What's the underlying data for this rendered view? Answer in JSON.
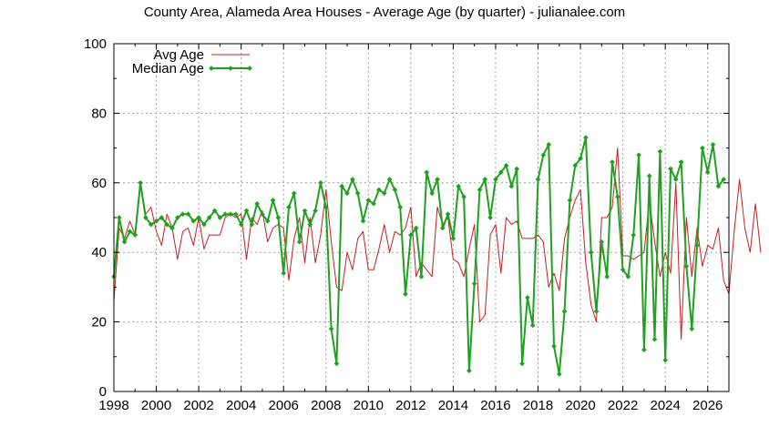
{
  "chart_data": {
    "type": "line",
    "title": "County Area, Alameda Area Houses - Average Age (by quarter) - julianalee.com",
    "xlabel": "",
    "ylabel": "",
    "xlim": [
      1998,
      2027
    ],
    "ylim": [
      0,
      100
    ],
    "x_ticks": [
      1998,
      2000,
      2002,
      2004,
      2006,
      2008,
      2010,
      2012,
      2014,
      2016,
      2018,
      2020,
      2022,
      2024,
      2026
    ],
    "y_ticks": [
      0,
      20,
      40,
      60,
      80,
      100
    ],
    "grid": true,
    "legend_position": "top-left",
    "x_start": 1998.0,
    "x_step": 0.25,
    "series": [
      {
        "name": "Avg Age",
        "color": "#c02020",
        "markers": false,
        "values": [
          26,
          47,
          44,
          49,
          45,
          59,
          51,
          53,
          46,
          42,
          51,
          47,
          38,
          46,
          47,
          42,
          50,
          41,
          45,
          45,
          45,
          50,
          51,
          50,
          51,
          38,
          50,
          48,
          52,
          43,
          47,
          48,
          47,
          32,
          44,
          50,
          37,
          50,
          37,
          45,
          58,
          43,
          30,
          29,
          40,
          35,
          44,
          46,
          35,
          35,
          41,
          48,
          40,
          46,
          45,
          47,
          53,
          33,
          37,
          35,
          33,
          53,
          48,
          50,
          38,
          37,
          33,
          41,
          48,
          20,
          22,
          45,
          48,
          34,
          50,
          48,
          49,
          44,
          44,
          44,
          45,
          43,
          30,
          34,
          29,
          44,
          50,
          55,
          58,
          37,
          25,
          20,
          50,
          50,
          53,
          70,
          39,
          39,
          38,
          39,
          40,
          55,
          43,
          33,
          40,
          34,
          60,
          15,
          50,
          33,
          47,
          36,
          42,
          41,
          47,
          32,
          28,
          46,
          61,
          47,
          40,
          54,
          40
        ]
      },
      {
        "name": "Median Age",
        "color": "#20a020",
        "markers": true,
        "values": [
          33,
          50,
          43,
          46,
          45,
          60,
          50,
          48,
          49,
          50,
          48,
          47,
          50,
          51,
          51,
          49,
          50,
          48,
          50,
          52,
          50,
          51,
          51,
          51,
          48,
          52,
          48,
          54,
          51,
          49,
          55,
          50,
          34,
          53,
          57,
          43,
          52,
          48,
          52,
          60,
          53,
          18,
          8,
          59,
          57,
          61,
          57,
          49,
          55,
          54,
          58,
          57,
          61,
          58,
          53,
          28,
          45,
          47,
          33,
          63,
          57,
          61,
          47,
          51,
          44,
          59,
          56,
          6,
          31,
          58,
          61,
          50,
          61,
          63,
          65,
          59,
          64,
          8,
          27,
          19,
          61,
          68,
          71,
          13,
          5,
          23,
          55,
          65,
          67,
          73,
          40,
          23,
          43,
          33,
          66,
          56,
          35,
          33,
          45,
          68,
          12,
          62,
          15,
          69,
          9,
          64,
          61,
          66,
          36,
          18,
          42,
          70,
          63,
          71,
          59,
          61
        ]
      }
    ]
  }
}
